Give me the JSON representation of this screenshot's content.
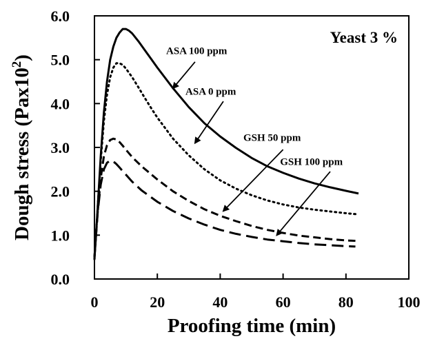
{
  "chart_data": {
    "type": "line",
    "title": "",
    "corner_label": "Yeast 3 %",
    "xlabel": "Proofing time (min)",
    "ylabel_main": "Dough stress (Pax10",
    "ylabel_sup": "2",
    "ylabel_close": ")",
    "xlim": [
      0,
      100
    ],
    "ylim": [
      0,
      6
    ],
    "xticks": [
      0,
      20,
      40,
      60,
      80,
      100
    ],
    "xtick_labels": [
      "0",
      "20",
      "40",
      "60",
      "80",
      "100"
    ],
    "yticks": [
      0,
      1,
      2,
      3,
      4,
      5,
      6
    ],
    "ytick_labels": [
      "0.0",
      "1.0",
      "2.0",
      "3.0",
      "4.0",
      "5.0",
      "6.0"
    ],
    "grid": false,
    "series": [
      {
        "name": "ASA 100 ppm",
        "style": "solid",
        "x": [
          0,
          1,
          2,
          3,
          4,
          5,
          6,
          7,
          8,
          9,
          10,
          11,
          12,
          14,
          16,
          18,
          20,
          25,
          30,
          35,
          40,
          45,
          50,
          55,
          60,
          65,
          70,
          75,
          80,
          84
        ],
        "y": [
          0.45,
          1.6,
          2.8,
          3.8,
          4.5,
          5.0,
          5.3,
          5.5,
          5.62,
          5.7,
          5.7,
          5.66,
          5.6,
          5.42,
          5.22,
          5.02,
          4.82,
          4.35,
          3.92,
          3.55,
          3.25,
          2.99,
          2.76,
          2.57,
          2.42,
          2.29,
          2.18,
          2.09,
          2.01,
          1.95
        ]
      },
      {
        "name": "ASA 0 ppm",
        "style": "dotted",
        "x": [
          0,
          1,
          2,
          3,
          4,
          5,
          6,
          7,
          8,
          9,
          10,
          12,
          14,
          16,
          18,
          20,
          25,
          30,
          35,
          40,
          45,
          50,
          55,
          60,
          65,
          70,
          75,
          80,
          83
        ],
        "y": [
          0.45,
          1.6,
          2.7,
          3.6,
          4.2,
          4.6,
          4.82,
          4.92,
          4.92,
          4.88,
          4.8,
          4.6,
          4.37,
          4.13,
          3.9,
          3.68,
          3.2,
          2.82,
          2.5,
          2.25,
          2.06,
          1.91,
          1.79,
          1.7,
          1.63,
          1.58,
          1.54,
          1.5,
          1.48
        ]
      },
      {
        "name": "GSH 50 ppm",
        "style": "dashed",
        "x": [
          0,
          1,
          2,
          3,
          4,
          5,
          6,
          7,
          8,
          9,
          10,
          12,
          15,
          20,
          25,
          30,
          35,
          40,
          45,
          50,
          55,
          60,
          65,
          70,
          75,
          80,
          83
        ],
        "y": [
          0.5,
          1.5,
          2.3,
          2.8,
          3.05,
          3.17,
          3.2,
          3.18,
          3.12,
          3.04,
          2.95,
          2.78,
          2.57,
          2.27,
          2.0,
          1.78,
          1.59,
          1.44,
          1.32,
          1.21,
          1.12,
          1.05,
          0.99,
          0.95,
          0.91,
          0.88,
          0.87
        ]
      },
      {
        "name": "GSH 100 ppm",
        "style": "longdash",
        "x": [
          0,
          1,
          2,
          3,
          4,
          5,
          6,
          7,
          8,
          9,
          10,
          12,
          15,
          20,
          25,
          30,
          35,
          40,
          45,
          50,
          55,
          60,
          65,
          70,
          75,
          80,
          83
        ],
        "y": [
          0.5,
          1.5,
          2.15,
          2.5,
          2.65,
          2.7,
          2.68,
          2.62,
          2.54,
          2.46,
          2.38,
          2.22,
          2.02,
          1.76,
          1.55,
          1.38,
          1.24,
          1.12,
          1.03,
          0.96,
          0.9,
          0.86,
          0.82,
          0.79,
          0.77,
          0.75,
          0.74
        ]
      }
    ],
    "annotations": [
      {
        "text": "ASA 100 ppm",
        "series": "ASA 100 ppm",
        "text_at": [
          32.5,
          5.13
        ],
        "arrow_from": [
          32,
          4.95
        ],
        "arrow_to": [
          25,
          4.35
        ]
      },
      {
        "text": "ASA 0 ppm",
        "series": "ASA 0 ppm",
        "text_at": [
          37,
          4.2
        ],
        "arrow_from": [
          41,
          4.05
        ],
        "arrow_to": [
          32,
          3.1
        ]
      },
      {
        "text": "GSH 50 ppm",
        "series": "GSH 50 ppm",
        "text_at": [
          56.5,
          3.15
        ],
        "arrow_from": [
          60,
          2.95
        ],
        "arrow_to": [
          41,
          1.55
        ]
      },
      {
        "text": "GSH 100 ppm",
        "series": "GSH 100 ppm",
        "text_at": [
          69,
          2.6
        ],
        "arrow_from": [
          75,
          2.45
        ],
        "arrow_to": [
          58,
          1.0
        ]
      }
    ]
  }
}
